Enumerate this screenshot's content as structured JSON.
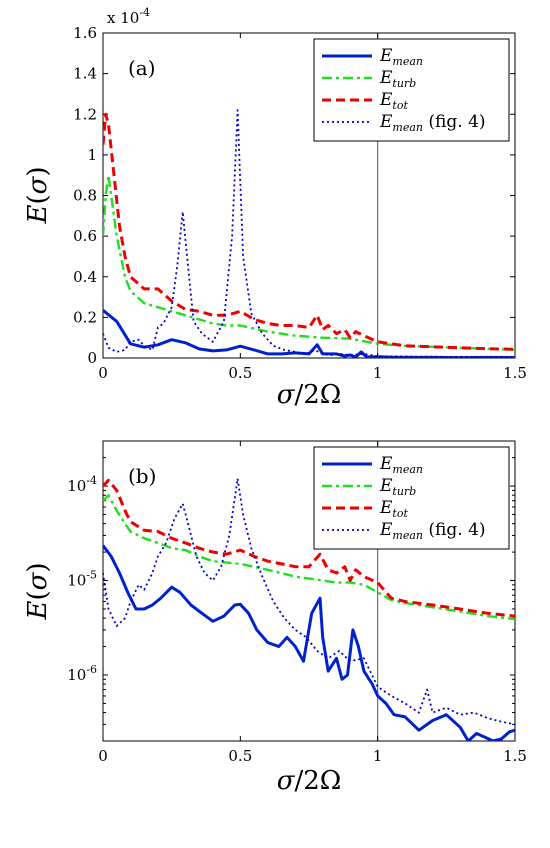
{
  "chart_data": [
    {
      "type": "line",
      "panel_label": "(a)",
      "xlabel": "σ/2Ω",
      "ylabel": "E(σ)",
      "xlim": [
        0,
        1.5
      ],
      "ylim": [
        0,
        0.00016
      ],
      "yscale": "linear",
      "y_multiplier_label": "x 10^-4",
      "x_ticks": [
        "0",
        "0.5",
        "1",
        "1.5"
      ],
      "y_ticks": [
        "0",
        "0.2",
        "0.4",
        "0.6",
        "0.8",
        "1",
        "1.2",
        "1.4",
        "1.6"
      ],
      "x_tick_values": [
        0,
        0.5,
        1,
        1.5
      ],
      "y_tick_values": [
        0,
        2e-05,
        4e-05,
        6e-05,
        8e-05,
        0.0001,
        0.00012,
        0.00014,
        0.00016
      ],
      "vline_x": 1,
      "legend_position": "top-right",
      "series": [
        {
          "name": "E_mean",
          "color": "#0022cc",
          "style": "solid",
          "x": [
            0,
            0.05,
            0.1,
            0.15,
            0.2,
            0.25,
            0.3,
            0.35,
            0.4,
            0.45,
            0.5,
            0.55,
            0.6,
            0.65,
            0.7,
            0.75,
            0.78,
            0.8,
            0.85,
            0.88,
            0.9,
            0.92,
            0.94,
            0.96,
            1.0,
            1.05,
            1.1,
            1.2,
            1.3,
            1.4,
            1.5
          ],
          "y": [
            2.35e-05,
            1.8e-05,
            7e-06,
            5.3e-06,
            6.5e-06,
            9e-06,
            7.5e-06,
            4.5e-06,
            3.5e-06,
            4e-06,
            5.8e-06,
            4e-06,
            2e-06,
            2e-06,
            2.5e-06,
            2e-06,
            6.5e-06,
            2e-06,
            2e-06,
            1e-06,
            1.5e-06,
            5e-07,
            3e-06,
            5e-07,
            6e-07,
            4e-07,
            3e-07,
            3e-07,
            2e-07,
            3e-07,
            2e-07
          ]
        },
        {
          "name": "E_turb",
          "color": "#22dd22",
          "style": "dashdot",
          "x": [
            0,
            0.01,
            0.02,
            0.03,
            0.05,
            0.08,
            0.1,
            0.15,
            0.2,
            0.25,
            0.3,
            0.35,
            0.4,
            0.45,
            0.5,
            0.6,
            0.7,
            0.8,
            0.9,
            1.0,
            1.1,
            1.2,
            1.3,
            1.4,
            1.5
          ],
          "y": [
            6e-05,
            8e-05,
            9e-05,
            8e-05,
            6e-05,
            4e-05,
            3.3e-05,
            2.7e-05,
            2.5e-05,
            2.3e-05,
            2.1e-05,
            1.9e-05,
            1.7e-05,
            1.6e-05,
            1.6e-05,
            1.3e-05,
            1.1e-05,
            1e-05,
            9.5e-06,
            7e-06,
            6e-06,
            5.5e-06,
            5e-06,
            4.5e-06,
            4.1e-06
          ]
        },
        {
          "name": "E_tot",
          "color": "#ee0000",
          "style": "dashed",
          "x": [
            0,
            0.01,
            0.02,
            0.04,
            0.06,
            0.08,
            0.1,
            0.15,
            0.2,
            0.25,
            0.3,
            0.35,
            0.4,
            0.45,
            0.5,
            0.55,
            0.6,
            0.65,
            0.7,
            0.75,
            0.78,
            0.8,
            0.82,
            0.85,
            0.88,
            0.9,
            0.92,
            0.95,
            1.0,
            1.1,
            1.2,
            1.3,
            1.4,
            1.5
          ],
          "y": [
            0.000105,
            0.00012,
            0.000115,
            9e-05,
            6.5e-05,
            5e-05,
            4e-05,
            3.4e-05,
            3.4e-05,
            2.8e-05,
            2.4e-05,
            2.3e-05,
            2.1e-05,
            2.1e-05,
            2.3e-05,
            1.9e-05,
            1.7e-05,
            1.6e-05,
            1.6e-05,
            1.5e-05,
            2.1e-05,
            1.4e-05,
            1.6e-05,
            1.2e-05,
            1.4e-05,
            1e-05,
            1.3e-05,
            1.1e-05,
            8e-06,
            6e-06,
            5.5e-06,
            5e-06,
            4.6e-06,
            4.3e-06
          ]
        },
        {
          "name": "E_mean (fig. 4)",
          "color": "#0000cc",
          "style": "dotted",
          "x": [
            0,
            0.02,
            0.05,
            0.08,
            0.1,
            0.13,
            0.15,
            0.18,
            0.2,
            0.22,
            0.25,
            0.27,
            0.29,
            0.31,
            0.33,
            0.36,
            0.4,
            0.44,
            0.47,
            0.49,
            0.51,
            0.54,
            0.58,
            0.62,
            0.66,
            0.7,
            0.74,
            0.77,
            0.8,
            0.83,
            0.86,
            0.9,
            0.95,
            1.0,
            1.05,
            1.1,
            1.15,
            1.2,
            1.25,
            1.3,
            1.35,
            1.4,
            1.45,
            1.5
          ],
          "y": [
            1.2e-05,
            5e-06,
            3e-06,
            4e-06,
            8e-06,
            9e-06,
            6e-06,
            4e-06,
            1.5e-05,
            1.7e-05,
            2.5e-05,
            4.5e-05,
            7.2e-05,
            4.5e-05,
            1.8e-05,
            1.2e-05,
            8e-06,
            1.8e-05,
            6e-05,
            0.000122,
            5e-05,
            2.2e-05,
            1.2e-05,
            6e-06,
            4e-06,
            3e-06,
            2e-06,
            4e-06,
            2e-06,
            1.5e-06,
            2e-06,
            1.5e-06,
            2e-06,
            9e-07,
            8e-07,
            8e-07,
            6e-07,
            7e-07,
            5e-07,
            6e-07,
            5e-07,
            5e-07,
            4e-07,
            4e-07
          ]
        }
      ]
    },
    {
      "type": "line",
      "panel_label": "(b)",
      "xlabel": "σ/2Ω",
      "ylabel": "E(σ)",
      "xlim": [
        0,
        1.5
      ],
      "ylim": [
        2e-07,
        0.0003
      ],
      "yscale": "log",
      "x_ticks": [
        "0",
        "0.5",
        "1",
        "1.5"
      ],
      "x_tick_values": [
        0,
        0.5,
        1,
        1.5
      ],
      "y_ticks": [
        "10^-6",
        "10^-5",
        "10^-4"
      ],
      "y_tick_values": [
        1e-06,
        1e-05,
        0.0001
      ],
      "vline_x": 1,
      "legend_position": "top-right",
      "series": [
        {
          "name": "E_mean",
          "color": "#0022cc",
          "style": "solid",
          "x": [
            0,
            0.03,
            0.06,
            0.09,
            0.12,
            0.15,
            0.18,
            0.21,
            0.25,
            0.28,
            0.32,
            0.36,
            0.4,
            0.44,
            0.48,
            0.5,
            0.53,
            0.56,
            0.6,
            0.64,
            0.67,
            0.7,
            0.73,
            0.76,
            0.79,
            0.8,
            0.82,
            0.85,
            0.87,
            0.89,
            0.91,
            0.93,
            0.95,
            0.98,
            1.0,
            1.03,
            1.06,
            1.1,
            1.15,
            1.2,
            1.25,
            1.3,
            1.33,
            1.36,
            1.39,
            1.42,
            1.45,
            1.48,
            1.5
          ],
          "y": [
            2.35e-05,
            1.8e-05,
            1.2e-05,
            7.5e-06,
            5e-06,
            5e-06,
            5.5e-06,
            6.5e-06,
            8.5e-06,
            7.5e-06,
            5.5e-06,
            4.5e-06,
            3.7e-06,
            4.2e-06,
            5.5e-06,
            5.6e-06,
            4.5e-06,
            3e-06,
            2.2e-06,
            2e-06,
            2.5e-06,
            2e-06,
            1.4e-06,
            4.5e-06,
            6.5e-06,
            2.5e-06,
            1.1e-06,
            1.5e-06,
            9e-07,
            1e-06,
            3e-06,
            2e-06,
            1.1e-06,
            8e-07,
            6e-07,
            5e-07,
            3.8e-07,
            3.6e-07,
            2.6e-07,
            3.3e-07,
            3.8e-07,
            2.8e-07,
            2e-07,
            2.4e-07,
            2.2e-07,
            2e-07,
            2.1e-07,
            2.5e-07,
            2.6e-07
          ]
        },
        {
          "name": "E_turb",
          "color": "#22dd22",
          "style": "dashdot",
          "x": [
            0,
            0.02,
            0.05,
            0.08,
            0.1,
            0.15,
            0.2,
            0.25,
            0.3,
            0.35,
            0.4,
            0.5,
            0.6,
            0.7,
            0.8,
            0.85,
            0.9,
            0.95,
            1.0,
            1.05,
            1.1,
            1.2,
            1.3,
            1.4,
            1.5
          ],
          "y": [
            7e-05,
            8e-05,
            5.5e-05,
            4e-05,
            3.3e-05,
            2.8e-05,
            2.5e-05,
            2.2e-05,
            2.1e-05,
            1.8e-05,
            1.6e-05,
            1.5e-05,
            1.3e-05,
            1.1e-05,
            1e-05,
            9.5e-06,
            9.5e-06,
            9e-06,
            7.5e-06,
            6.2e-06,
            5.8e-06,
            5.2e-06,
            4.7e-06,
            4.2e-06,
            3.9e-06
          ]
        },
        {
          "name": "E_tot",
          "color": "#ee0000",
          "style": "dashed",
          "x": [
            0,
            0.02,
            0.05,
            0.08,
            0.1,
            0.15,
            0.2,
            0.25,
            0.3,
            0.35,
            0.4,
            0.45,
            0.5,
            0.55,
            0.6,
            0.65,
            0.7,
            0.75,
            0.79,
            0.82,
            0.85,
            0.88,
            0.9,
            0.92,
            0.95,
            1.0,
            1.05,
            1.1,
            1.2,
            1.3,
            1.4,
            1.5
          ],
          "y": [
            0.0001,
            0.000115,
            9e-05,
            5.5e-05,
            4.2e-05,
            3.4e-05,
            3.3e-05,
            2.8e-05,
            2.5e-05,
            2.2e-05,
            2e-05,
            1.9e-05,
            2.1e-05,
            1.8e-05,
            1.6e-05,
            1.5e-05,
            1.4e-05,
            1.4e-05,
            1.9e-05,
            1.3e-05,
            1.2e-05,
            1.4e-05,
            1e-05,
            1.3e-05,
            1.1e-05,
            9.5e-06,
            6.5e-06,
            6e-06,
            5.5e-06,
            5e-06,
            4.5e-06,
            4.2e-06
          ]
        },
        {
          "name": "E_mean (fig. 4)",
          "color": "#0000cc",
          "style": "dotted",
          "x": [
            0,
            0.02,
            0.05,
            0.08,
            0.1,
            0.13,
            0.15,
            0.18,
            0.2,
            0.23,
            0.26,
            0.29,
            0.31,
            0.34,
            0.37,
            0.4,
            0.43,
            0.46,
            0.49,
            0.51,
            0.54,
            0.58,
            0.62,
            0.66,
            0.7,
            0.74,
            0.78,
            0.82,
            0.86,
            0.9,
            0.95,
            1.0,
            1.05,
            1.1,
            1.15,
            1.18,
            1.2,
            1.25,
            1.3,
            1.35,
            1.4,
            1.45,
            1.5
          ],
          "y": [
            1.2e-05,
            5e-06,
            3.3e-06,
            4e-06,
            6e-06,
            9e-06,
            8e-06,
            1.2e-05,
            1.8e-05,
            2.5e-05,
            4.5e-05,
            6.5e-05,
            4e-05,
            1.8e-05,
            1.2e-05,
            1e-05,
            1.4e-05,
            3e-05,
            0.00012,
            5e-05,
            2.2e-05,
            1.1e-05,
            6e-06,
            4e-06,
            3e-06,
            2.5e-06,
            1.8e-06,
            1.5e-06,
            1.8e-06,
            1.4e-06,
            1.5e-06,
            7.5e-07,
            6e-07,
            5e-07,
            4e-07,
            7e-07,
            4e-07,
            4.5e-07,
            3.8e-07,
            4e-07,
            3.5e-07,
            3.2e-07,
            3e-07
          ]
        }
      ]
    }
  ]
}
